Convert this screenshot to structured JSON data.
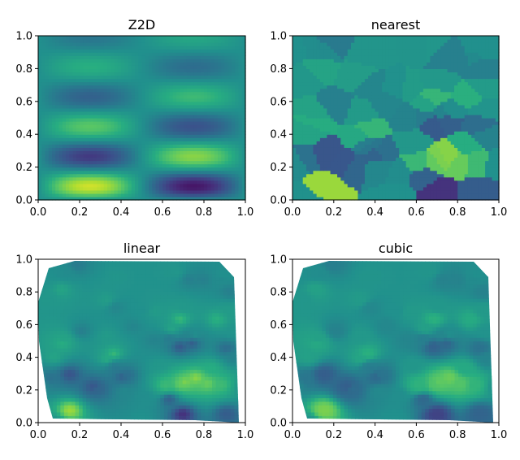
{
  "chart_data": [
    {
      "type": "heatmap",
      "title": "Z2D",
      "xlabel": "",
      "ylabel": "",
      "xlim": [
        0,
        1
      ],
      "ylim": [
        0,
        1
      ],
      "xticks": [
        "0.0",
        "0.2",
        "0.4",
        "0.6",
        "0.8",
        "1.0"
      ],
      "yticks": [
        "0.0",
        "0.2",
        "0.4",
        "0.6",
        "0.8",
        "1.0"
      ],
      "colormap": "viridis",
      "grid": false
    },
    {
      "type": "heatmap",
      "title": "nearest",
      "xlabel": "",
      "ylabel": "",
      "xlim": [
        0,
        1
      ],
      "ylim": [
        0,
        1
      ],
      "xticks": [
        "0.0",
        "0.2",
        "0.4",
        "0.6",
        "0.8",
        "1.0"
      ],
      "yticks": [
        "0.0",
        "0.2",
        "0.4",
        "0.6",
        "0.8",
        "1.0"
      ],
      "colormap": "viridis",
      "grid": false
    },
    {
      "type": "heatmap",
      "title": "linear",
      "xlabel": "",
      "ylabel": "",
      "xlim": [
        0,
        1
      ],
      "ylim": [
        0,
        1
      ],
      "xticks": [
        "0.0",
        "0.2",
        "0.4",
        "0.6",
        "0.8",
        "1.0"
      ],
      "yticks": [
        "0.0",
        "0.2",
        "0.4",
        "0.6",
        "0.8",
        "1.0"
      ],
      "colormap": "viridis",
      "grid": false
    },
    {
      "type": "heatmap",
      "title": "cubic",
      "xlabel": "",
      "ylabel": "",
      "xlim": [
        0,
        1
      ],
      "ylim": [
        0,
        1
      ],
      "xticks": [
        "0.0",
        "0.2",
        "0.4",
        "0.6",
        "0.8",
        "1.0"
      ],
      "yticks": [
        "0.0",
        "0.2",
        "0.4",
        "0.6",
        "0.8",
        "1.0"
      ],
      "colormap": "viridis",
      "grid": false
    }
  ]
}
